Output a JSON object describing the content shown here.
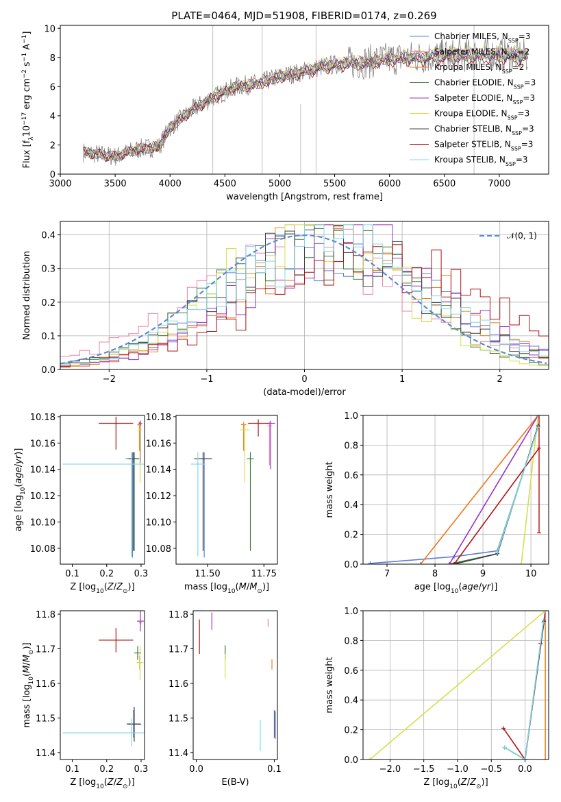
{
  "figure_title": "PLATE=0464, MJD=51908, FIBERID=0174, z=0.269",
  "colors": {
    "data": "#808080",
    "chabrier_miles": "#5b7fd6",
    "salpeter_miles": "#f080a0",
    "kroupa_miles": "#f07f20",
    "chabrier_elodie": "#3a7a3a",
    "salpeter_elodie": "#9b30c0",
    "kroupa_elodie": "#d4e04a",
    "chabrier_stelib": "#404040",
    "salpeter_stelib": "#b01010",
    "kroupa_stelib": "#80d8e0",
    "normal_curve": "#5b8ad6"
  },
  "legend_spectrum": [
    {
      "label": "Chabrier MILES, N",
      "sub": "SSP",
      "tail": "=3",
      "color_key": "chabrier_miles"
    },
    {
      "label": "Salpeter MILES, N",
      "sub": "SSP",
      "tail": "=2",
      "color_key": "salpeter_miles"
    },
    {
      "label": "Kroupa MILES, N",
      "sub": "SSP",
      "tail": "=2",
      "color_key": "kroupa_miles"
    },
    {
      "label": "Chabrier ELODIE, N",
      "sub": "SSP",
      "tail": "=3",
      "color_key": "chabrier_elodie"
    },
    {
      "label": "Salpeter ELODIE, N",
      "sub": "SSP",
      "tail": "=3",
      "color_key": "salpeter_elodie"
    },
    {
      "label": "Kroupa ELODIE, N",
      "sub": "SSP",
      "tail": "=3",
      "color_key": "kroupa_elodie"
    },
    {
      "label": "Chabrier STELIB, N",
      "sub": "SSP",
      "tail": "=3",
      "color_key": "chabrier_stelib"
    },
    {
      "label": "Salpeter STELIB, N",
      "sub": "SSP",
      "tail": "=3",
      "color_key": "salpeter_stelib"
    },
    {
      "label": "Kroupa STELIB, N",
      "sub": "SSP",
      "tail": "=3",
      "color_key": "kroupa_stelib"
    }
  ],
  "legend_hist": {
    "label": "𝒩(0, 1)"
  },
  "chart_data": [
    {
      "id": "spectrum",
      "type": "line",
      "xlabel": "wavelength [Angstrom, rest frame]",
      "ylabel": "Flux [f_λ 10^-17 erg cm^-2 s^-1 A^-1]",
      "xlim": [
        3000,
        7450
      ],
      "ylim": [
        0,
        10.2
      ],
      "xticks": [
        3000,
        3500,
        4000,
        4500,
        5000,
        5500,
        6000,
        6500,
        7000
      ],
      "yticks": [
        0,
        2,
        4,
        6,
        8,
        10
      ],
      "grid": false,
      "legend": "top-right",
      "data_range": [
        3210,
        7260
      ],
      "continuum": [
        [
          3210,
          1.5
        ],
        [
          3500,
          1.2
        ],
        [
          3700,
          1.7
        ],
        [
          3900,
          1.9
        ],
        [
          4000,
          3.2
        ],
        [
          4200,
          4.4
        ],
        [
          4400,
          5.3
        ],
        [
          4600,
          6.0
        ],
        [
          4800,
          6.2
        ],
        [
          5000,
          6.7
        ],
        [
          5200,
          7.0
        ],
        [
          5400,
          7.4
        ],
        [
          5600,
          7.6
        ],
        [
          5800,
          7.7
        ],
        [
          6000,
          7.9
        ],
        [
          6200,
          8.0
        ],
        [
          6500,
          8.1
        ],
        [
          6800,
          8.2
        ],
        [
          7000,
          8.2
        ],
        [
          7260,
          8.1
        ]
      ],
      "model_offsets": [
        0.05,
        0.15,
        -0.05,
        0.0,
        0.1,
        0.3,
        -0.1,
        -0.35,
        -0.15
      ],
      "data_spikes": [
        [
          4390,
          10.2
        ],
        [
          4840,
          10.2
        ],
        [
          5330,
          10.2
        ],
        [
          6770,
          10.2
        ],
        [
          5190,
          4.8
        ]
      ]
    },
    {
      "id": "residual-hist",
      "type": "step",
      "xlabel": "(data-model)/error",
      "ylabel": "Normed distribution",
      "xlim": [
        -2.5,
        2.5
      ],
      "ylim": [
        0,
        0.44
      ],
      "xticks": [
        -2,
        -1,
        0,
        1,
        2
      ],
      "yticks": [
        0.0,
        0.1,
        0.2,
        0.3,
        0.4
      ],
      "grid": true,
      "legend": "top-right",
      "bin_width": 0.1,
      "series_shifts": [
        0.3,
        0.0,
        0.35,
        0.1,
        0.4,
        0.05,
        0.2,
        0.8,
        0.25
      ],
      "series_widths": [
        1.05,
        1.1,
        1.0,
        0.95,
        1.0,
        0.9,
        1.05,
        1.3,
        1.05
      ]
    },
    {
      "id": "age-vs-Z",
      "type": "errorbar",
      "xlabel": "Z [log10(Z/Z⊙)]",
      "ylabel": "age  [log10(age/yr)]",
      "xlim": [
        0.065,
        0.31
      ],
      "ylim": [
        10.068,
        10.181
      ],
      "xticks": [
        0.1,
        0.2,
        0.3
      ],
      "yticks": [
        10.08,
        10.1,
        10.12,
        10.14,
        10.16,
        10.18
      ],
      "points": [
        {
          "x": 0.275,
          "y": 10.148,
          "xerr": 0.02,
          "yerr": [
            0.075,
            0.005
          ],
          "color_key": "chabrier_miles"
        },
        {
          "x": 0.297,
          "y": 10.173,
          "xerr": 0.004,
          "yerr": [
            0.03,
            0.003
          ],
          "color_key": "salpeter_miles"
        },
        {
          "x": 0.295,
          "y": 10.174,
          "xerr": 0.006,
          "yerr": [
            0.02,
            0.002
          ],
          "color_key": "kroupa_miles"
        },
        {
          "x": 0.28,
          "y": 10.148,
          "xerr": 0.015,
          "yerr": [
            0.07,
            0.005
          ],
          "color_key": "chabrier_elodie"
        },
        {
          "x": 0.298,
          "y": 10.175,
          "xerr": 0.005,
          "yerr": [
            0.03,
            0.002
          ],
          "color_key": "salpeter_elodie"
        },
        {
          "x": 0.297,
          "y": 10.17,
          "xerr": 0.006,
          "yerr": [
            0.04,
            0.004
          ],
          "color_key": "kroupa_elodie"
        },
        {
          "x": 0.278,
          "y": 10.148,
          "xerr": 0.015,
          "yerr": [
            0.07,
            0.005
          ],
          "color_key": "chabrier_stelib"
        },
        {
          "x": 0.227,
          "y": 10.175,
          "xerr": 0.05,
          "yerr": [
            0.02,
            0.005
          ],
          "color_key": "salpeter_stelib"
        },
        {
          "x": 0.272,
          "y": 10.144,
          "xerr": 0.2,
          "yerr": [
            0.07,
            0.009
          ],
          "color_key": "kroupa_stelib"
        }
      ]
    },
    {
      "id": "age-vs-mass",
      "type": "errorbar",
      "xlabel": "mass [log10(M/M⊙)]",
      "ylabel": "",
      "xlim": [
        11.36,
        11.81
      ],
      "ylim": [
        10.068,
        10.181
      ],
      "xticks": [
        11.5,
        11.75
      ],
      "yticks": [
        10.08,
        10.1,
        10.12,
        10.14,
        10.16,
        10.18
      ],
      "points": [
        {
          "x": 11.485,
          "y": 10.148,
          "xerr": 0.02,
          "yerr": [
            0.075,
            0.005
          ],
          "color_key": "chabrier_miles"
        },
        {
          "x": 11.775,
          "y": 10.173,
          "xerr": 0.01,
          "yerr": [
            0.03,
            0.003
          ],
          "color_key": "salpeter_miles"
        },
        {
          "x": 11.66,
          "y": 10.174,
          "xerr": 0.012,
          "yerr": [
            0.02,
            0.002
          ],
          "color_key": "kroupa_miles"
        },
        {
          "x": 11.69,
          "y": 10.148,
          "xerr": 0.015,
          "yerr": [
            0.07,
            0.005
          ],
          "color_key": "chabrier_elodie"
        },
        {
          "x": 11.78,
          "y": 10.175,
          "xerr": 0.02,
          "yerr": [
            0.035,
            0.002
          ],
          "color_key": "salpeter_elodie"
        },
        {
          "x": 11.665,
          "y": 10.17,
          "xerr": 0.02,
          "yerr": [
            0.04,
            0.004
          ],
          "color_key": "kroupa_elodie"
        },
        {
          "x": 11.48,
          "y": 10.148,
          "xerr": 0.04,
          "yerr": [
            0.07,
            0.005
          ],
          "color_key": "chabrier_stelib"
        },
        {
          "x": 11.725,
          "y": 10.175,
          "xerr": 0.045,
          "yerr": [
            0.01,
            0.003
          ],
          "color_key": "salpeter_stelib"
        },
        {
          "x": 11.457,
          "y": 10.144,
          "xerr": 0.03,
          "yerr": [
            0.07,
            0.009
          ],
          "color_key": "kroupa_stelib"
        }
      ]
    },
    {
      "id": "massweight-vs-age",
      "type": "line",
      "xlabel": "age  [log10(age/yr)]",
      "ylabel": "mass weight",
      "xlim": [
        6.5,
        10.37
      ],
      "ylim": [
        0,
        1.0
      ],
      "xticks": [
        7,
        8,
        9,
        10
      ],
      "yticks": [
        0.0,
        0.2,
        0.4,
        0.6,
        0.8,
        1.0
      ],
      "grid": true,
      "series": [
        {
          "color_key": "chabrier_miles",
          "points": [
            [
              6.65,
              0.005
            ],
            [
              8.4,
              0.05
            ],
            [
              9.3,
              0.09
            ],
            [
              10.15,
              0.92
            ]
          ]
        },
        {
          "color_key": "salpeter_miles",
          "points": [
            [
              7.7,
              0.0
            ],
            [
              10.15,
              1.0
            ]
          ]
        },
        {
          "color_key": "kroupa_miles",
          "points": [
            [
              7.7,
              0.0
            ],
            [
              10.15,
              1.0
            ]
          ]
        },
        {
          "color_key": "chabrier_elodie",
          "points": [
            [
              8.3,
              0.0
            ],
            [
              9.3,
              0.07
            ],
            [
              10.15,
              0.93
            ]
          ]
        },
        {
          "color_key": "salpeter_elodie",
          "points": [
            [
              8.3,
              0.0
            ],
            [
              10.15,
              1.0
            ]
          ]
        },
        {
          "color_key": "kroupa_elodie",
          "points": [
            [
              9.8,
              0.0
            ],
            [
              10.15,
              1.0
            ]
          ]
        },
        {
          "color_key": "chabrier_stelib",
          "points": [
            [
              8.4,
              0.0
            ],
            [
              9.3,
              0.07
            ],
            [
              10.15,
              0.93
            ]
          ]
        },
        {
          "color_key": "salpeter_stelib",
          "points": [
            [
              8.4,
              0.0
            ],
            [
              10.17,
              0.78
            ]
          ],
          "errbar": {
            "x": 10.17,
            "lo": 0.21,
            "hi": 1.0
          }
        },
        {
          "color_key": "kroupa_stelib",
          "points": [
            [
              9.3,
              0.08
            ],
            [
              10.15,
              0.92
            ]
          ]
        }
      ]
    },
    {
      "id": "mass-vs-Z",
      "type": "errorbar",
      "xlabel": "Z [log10(Z/Z⊙)]",
      "ylabel": "mass [log10(M/M⊙)]",
      "xlim": [
        0.065,
        0.31
      ],
      "ylim": [
        11.38,
        11.81
      ],
      "xticks": [
        0.1,
        0.2,
        0.3
      ],
      "yticks": [
        11.4,
        11.5,
        11.6,
        11.7,
        11.8
      ],
      "points": [
        {
          "x": 0.278,
          "y": 11.483,
          "xerr": 0.02,
          "yerr": 0.04,
          "color_key": "chabrier_miles"
        },
        {
          "x": 0.298,
          "y": 11.775,
          "xerr": 0.004,
          "yerr": 0.01,
          "color_key": "salpeter_miles"
        },
        {
          "x": 0.296,
          "y": 11.66,
          "xerr": 0.006,
          "yerr": 0.02,
          "color_key": "kroupa_miles"
        },
        {
          "x": 0.29,
          "y": 11.688,
          "xerr": 0.01,
          "yerr": 0.02,
          "color_key": "chabrier_elodie"
        },
        {
          "x": 0.298,
          "y": 11.78,
          "xerr": 0.01,
          "yerr": 0.03,
          "color_key": "salpeter_elodie"
        },
        {
          "x": 0.297,
          "y": 11.66,
          "xerr": 0.01,
          "yerr": 0.05,
          "color_key": "kroupa_elodie"
        },
        {
          "x": 0.28,
          "y": 11.482,
          "xerr": 0.02,
          "yerr": 0.05,
          "color_key": "chabrier_stelib"
        },
        {
          "x": 0.227,
          "y": 11.725,
          "xerr": 0.05,
          "yerr": 0.035,
          "color_key": "salpeter_stelib"
        },
        {
          "x": 0.272,
          "y": 11.457,
          "xerr": 0.2,
          "yerr": 0.04,
          "color_key": "kroupa_stelib"
        }
      ]
    },
    {
      "id": "mass-vs-EBV",
      "type": "errorbar",
      "xlabel": "E(B-V)",
      "ylabel": "",
      "xlim": [
        -0.004,
        0.104
      ],
      "ylim": [
        11.38,
        11.81
      ],
      "xticks": [
        0.0,
        0.1
      ],
      "yticks": [
        11.4,
        11.5,
        11.6,
        11.7,
        11.8
      ],
      "points": [
        {
          "x": 0.1,
          "y": 11.483,
          "xerr": 0.0,
          "yerr": 0.04,
          "color_key": "chabrier_miles"
        },
        {
          "x": 0.092,
          "y": 11.775,
          "xerr": 0.0,
          "yerr": 0.012,
          "color_key": "salpeter_miles"
        },
        {
          "x": 0.097,
          "y": 11.655,
          "xerr": 0.0,
          "yerr": 0.015,
          "color_key": "kroupa_miles"
        },
        {
          "x": 0.037,
          "y": 11.69,
          "xerr": 0.0,
          "yerr": 0.02,
          "color_key": "chabrier_elodie"
        },
        {
          "x": 0.02,
          "y": 11.78,
          "xerr": 0.0,
          "yerr": 0.025,
          "color_key": "salpeter_elodie"
        },
        {
          "x": 0.037,
          "y": 11.65,
          "xerr": 0.0,
          "yerr": 0.035,
          "color_key": "kroupa_elodie"
        },
        {
          "x": 0.101,
          "y": 11.48,
          "xerr": 0.0,
          "yerr": 0.04,
          "color_key": "chabrier_stelib"
        },
        {
          "x": 0.004,
          "y": 11.735,
          "xerr": 0.0,
          "yerr": 0.05,
          "color_key": "salpeter_stelib"
        },
        {
          "x": 0.082,
          "y": 11.45,
          "xerr": 0.0,
          "yerr": 0.045,
          "color_key": "kroupa_stelib"
        }
      ]
    },
    {
      "id": "massweight-vs-Z",
      "type": "line",
      "xlabel": "Z [log10(Z/Z⊙)]",
      "ylabel": "mass weight",
      "xlim": [
        -2.4,
        0.35
      ],
      "ylim": [
        0,
        1.0
      ],
      "xticks": [
        -2.0,
        -1.5,
        -1.0,
        -0.5,
        0.0
      ],
      "yticks": [
        0.0,
        0.2,
        0.4,
        0.6,
        0.8,
        1.0
      ],
      "grid": true,
      "series": [
        {
          "color_key": "chabrier_miles",
          "points": [
            [
              -0.3,
              0.08
            ],
            [
              0.0,
              0.0
            ],
            [
              0.28,
              0.92
            ]
          ]
        },
        {
          "color_key": "salpeter_miles",
          "points": [
            [
              0.0,
              0.0
            ],
            [
              0.3,
              1.0
            ]
          ]
        },
        {
          "color_key": "kroupa_miles",
          "points": [
            [
              0.3,
              0.0
            ],
            [
              0.3,
              1.0
            ]
          ]
        },
        {
          "color_key": "chabrier_elodie",
          "points": [
            [
              0.0,
              0.0
            ],
            [
              0.28,
              0.93
            ]
          ]
        },
        {
          "color_key": "salpeter_elodie",
          "points": [
            [
              0.0,
              0.0
            ],
            [
              0.3,
              1.0
            ]
          ]
        },
        {
          "color_key": "kroupa_elodie",
          "points": [
            [
              -2.3,
              0.0
            ],
            [
              0.3,
              1.0
            ]
          ]
        },
        {
          "color_key": "chabrier_stelib",
          "points": [
            [
              -0.3,
              0.08
            ],
            [
              0.0,
              0.0
            ],
            [
              0.28,
              0.93
            ]
          ]
        },
        {
          "color_key": "salpeter_stelib",
          "points": [
            [
              -0.32,
              0.21
            ],
            [
              0.0,
              0.0
            ],
            [
              0.23,
              0.78
            ]
          ]
        },
        {
          "color_key": "kroupa_stelib",
          "points": [
            [
              -0.3,
              0.08
            ],
            [
              0.0,
              0.0
            ],
            [
              0.27,
              0.92
            ]
          ]
        }
      ]
    }
  ]
}
